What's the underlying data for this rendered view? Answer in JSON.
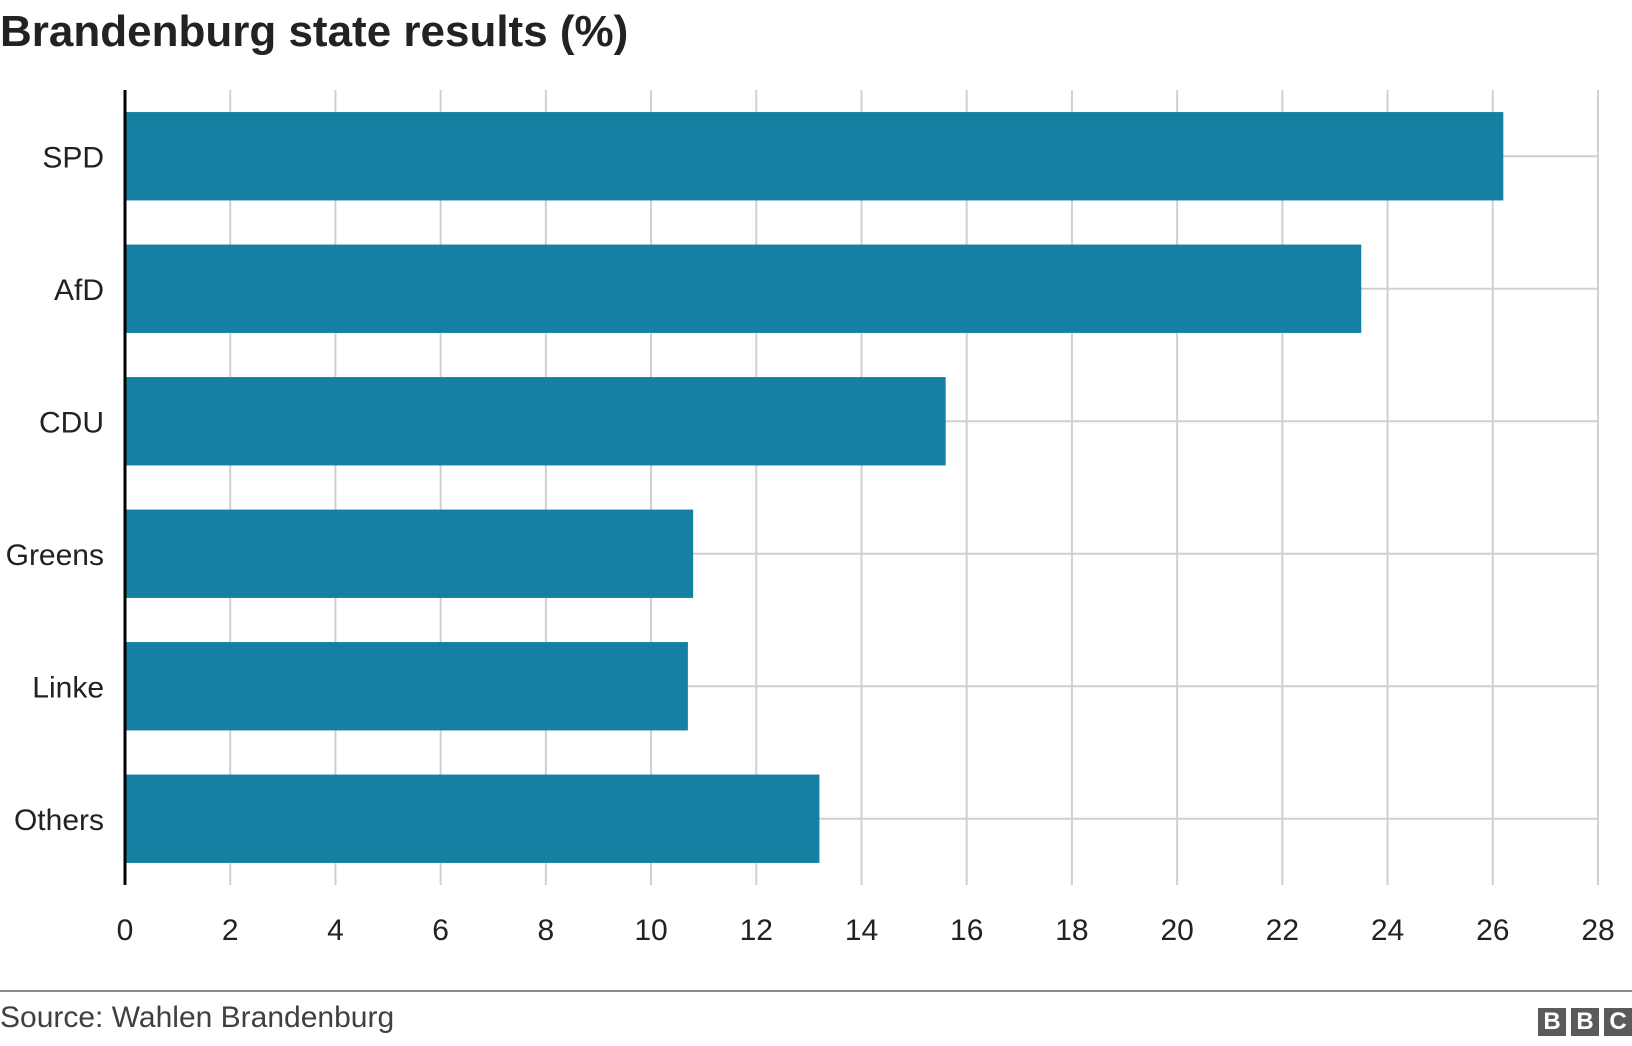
{
  "chart_data": {
    "type": "bar",
    "orientation": "horizontal",
    "title": "Brandenburg state results (%)",
    "categories": [
      "SPD",
      "AfD",
      "CDU",
      "Greens",
      "Linke",
      "Others"
    ],
    "values": [
      26.2,
      23.5,
      15.6,
      10.8,
      10.7,
      13.2
    ],
    "xlim": [
      0,
      28
    ],
    "xticks": [
      "0",
      "2",
      "4",
      "6",
      "8",
      "10",
      "12",
      "14",
      "16",
      "18",
      "20",
      "22",
      "24",
      "26",
      "28"
    ],
    "xlabel": "",
    "ylabel": "",
    "grid": true,
    "legend": "none",
    "bar_color": "#1580a2",
    "grid_color": "#d0d0d0",
    "axis_color": "#000000"
  },
  "footer": {
    "source": "Source: Wahlen Brandenburg",
    "logo": [
      "B",
      "B",
      "C"
    ]
  }
}
